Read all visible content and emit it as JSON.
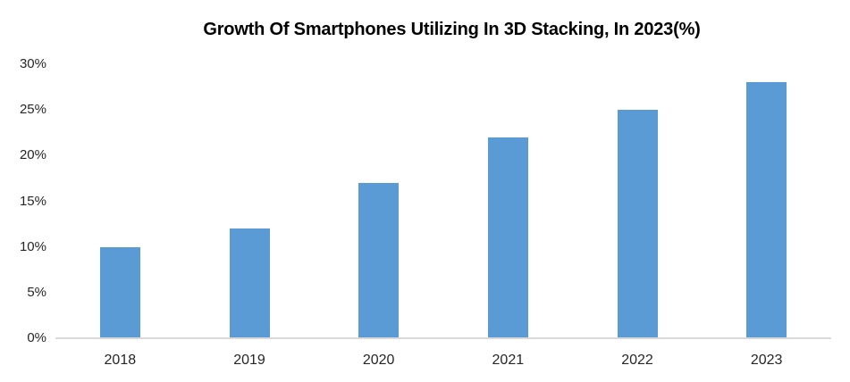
{
  "chart_data": {
    "type": "bar",
    "title": "Growth Of Smartphones Utilizing In 3D Stacking, In 2023(%)",
    "categories": [
      "2018",
      "2019",
      "2020",
      "2021",
      "2022",
      "2023"
    ],
    "values": [
      10,
      12,
      17,
      22,
      25,
      28
    ],
    "xlabel": "",
    "ylabel": "",
    "ylim": [
      0,
      30
    ],
    "ytick_step": 5,
    "ytick_suffix": "%",
    "grid": false,
    "legend": "none",
    "bar_color": "#5B9BD5",
    "axis_line_color": "#D9D9D9",
    "tick_label_color": "#262626",
    "title_color": "#000000",
    "background_color": "#FFFFFF"
  }
}
